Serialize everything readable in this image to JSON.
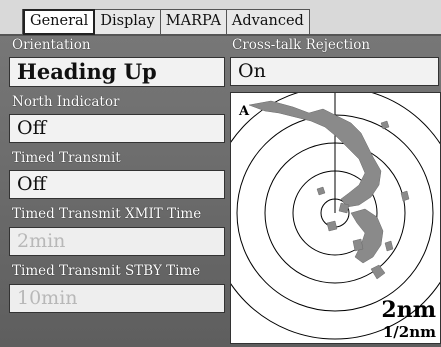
{
  "tabs": [
    {
      "label": "General",
      "active": true
    },
    {
      "label": "Display",
      "active": false
    },
    {
      "label": "MARPA",
      "active": false
    },
    {
      "label": "Advanced",
      "active": false
    }
  ],
  "settings": {
    "orientation": {
      "label": "Orientation",
      "value": "Heading Up"
    },
    "crosstalk": {
      "label": "Cross-talk Rejection",
      "value": "On"
    },
    "north_indicator": {
      "label": "North Indicator",
      "value": "Off"
    },
    "timed_transmit": {
      "label": "Timed Transmit",
      "value": "Off"
    },
    "xmit_time": {
      "label": "Timed Transmit XMIT Time",
      "value": "2min"
    },
    "stby_time": {
      "label": "Timed Transmit STBY Time",
      "value": "10min"
    }
  },
  "radar": {
    "range": "2nm",
    "ring_spacing": "1/2nm",
    "north_marker": "A",
    "echo_color": "#8a8a8a"
  }
}
